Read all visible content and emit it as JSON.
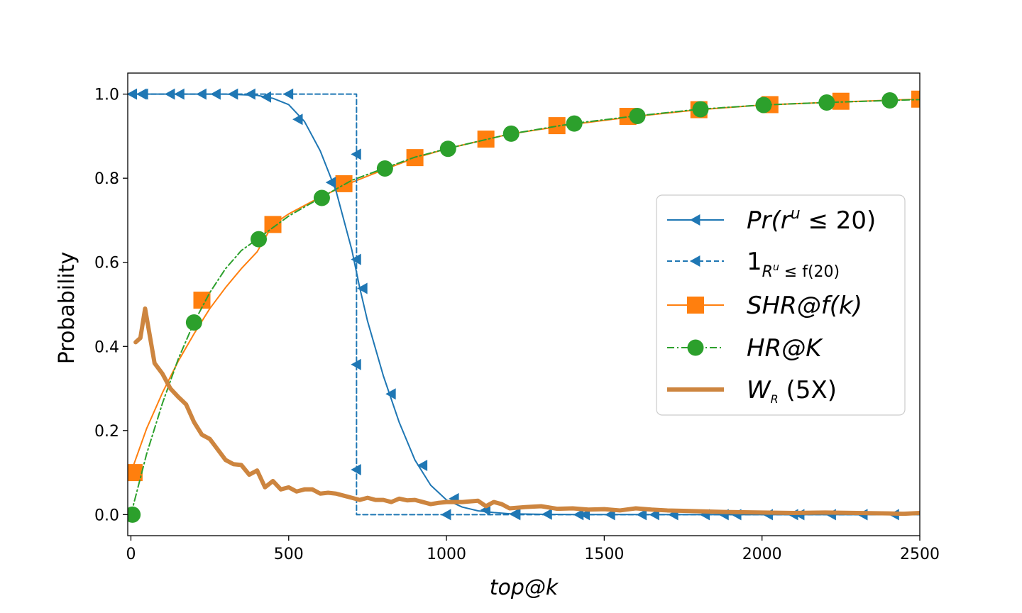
{
  "chart_data": {
    "type": "line",
    "title": "",
    "xlabel": "top@k",
    "ylabel": "Probability",
    "xlim": [
      -10,
      2500
    ],
    "ylim": [
      -0.05,
      1.05
    ],
    "xticks": [
      0,
      500,
      1000,
      1500,
      2000,
      2500
    ],
    "yticks": [
      0.0,
      0.2,
      0.4,
      0.6,
      0.8,
      1.0
    ],
    "xtick_labels": [
      "0",
      "500",
      "1000",
      "1500",
      "2000",
      "2500"
    ],
    "ytick_labels": [
      "0.0",
      "0.2",
      "0.4",
      "0.6",
      "0.8",
      "1.0"
    ],
    "grid": false,
    "legend_position": "center-right",
    "series": [
      {
        "name": "Pr(r^u ≤ 20)",
        "legend_main": "Pr(r",
        "legend_sup": "u",
        "legend_tail": " ≤ 20)",
        "color": "#1f77b4",
        "line_style": "solid",
        "marker": "triangle-left",
        "x": [
          0,
          100,
          200,
          300,
          400,
          450,
          500,
          550,
          600,
          650,
          700,
          725,
          750,
          800,
          850,
          900,
          950,
          1000,
          1050,
          1100,
          1150,
          1200,
          1300,
          1400,
          1500,
          2500
        ],
        "y": [
          1.0,
          1.0,
          1.0,
          1.0,
          0.997,
          0.99,
          0.975,
          0.935,
          0.865,
          0.77,
          0.63,
          0.54,
          0.46,
          0.33,
          0.22,
          0.13,
          0.07,
          0.035,
          0.018,
          0.009,
          0.005,
          0.002,
          0.0008,
          0.0003,
          0.0001,
          0.0
        ],
        "marker_points": [
          [
            5,
            1.0
          ],
          [
            35,
            1.0
          ],
          [
            125,
            1.0
          ],
          [
            225,
            1.0
          ],
          [
            325,
            1.0
          ],
          [
            430,
            0.993
          ],
          [
            530,
            0.94
          ],
          [
            635,
            0.79
          ],
          [
            735,
            0.538
          ],
          [
            825,
            0.287
          ],
          [
            925,
            0.117
          ],
          [
            1025,
            0.038
          ],
          [
            1125,
            0.011
          ],
          [
            1220,
            0.003
          ],
          [
            1320,
            0.001
          ],
          [
            1420,
            0.0
          ],
          [
            1520,
            0.0
          ],
          [
            1620,
            0.0
          ],
          [
            1720,
            0.0
          ],
          [
            1820,
            0.0
          ],
          [
            1920,
            0.0
          ],
          [
            2020,
            0.0
          ],
          [
            2120,
            0.0
          ],
          [
            2220,
            0.0
          ],
          [
            2320,
            0.0
          ],
          [
            2420,
            0.0
          ]
        ]
      },
      {
        "name": "1_{R^u ≤ f(20)}",
        "legend_main": "1",
        "legend_sub": "R",
        "legend_subsup": "u",
        "legend_subtail": " ≤ f(20)",
        "color": "#1f77b4",
        "line_style": "dashed",
        "marker": "triangle-left",
        "x": [
          -10,
          715,
          715,
          2500
        ],
        "y": [
          1.0,
          1.0,
          0.0,
          0.0
        ],
        "marker_points": [
          [
            40,
            1.0
          ],
          [
            155,
            1.0
          ],
          [
            270,
            1.0
          ],
          [
            380,
            1.0
          ],
          [
            500,
            1.0
          ],
          [
            715,
            0.857
          ],
          [
            715,
            0.607
          ],
          [
            715,
            0.357
          ],
          [
            715,
            0.107
          ],
          [
            1000,
            0.0
          ],
          [
            1220,
            0.0
          ],
          [
            1440,
            0.0
          ],
          [
            1660,
            0.0
          ],
          [
            1880,
            0.0
          ],
          [
            2100,
            0.0
          ],
          [
            2320,
            0.0
          ]
        ]
      },
      {
        "name": "SHR@f(k)",
        "legend_main": "SHR@f(k)",
        "color": "#ff7f0e",
        "line_style": "solid",
        "marker": "square",
        "x": [
          0,
          50,
          100,
          150,
          200,
          250,
          300,
          350,
          400,
          450,
          500,
          600,
          700,
          800,
          900,
          1000,
          1200,
          1400,
          1600,
          1800,
          2000,
          2200,
          2500
        ],
        "y": [
          0.1,
          0.205,
          0.29,
          0.365,
          0.43,
          0.49,
          0.54,
          0.585,
          0.625,
          0.69,
          0.715,
          0.755,
          0.79,
          0.82,
          0.848,
          0.87,
          0.905,
          0.928,
          0.947,
          0.963,
          0.974,
          0.98,
          0.988
        ],
        "marker_points": [
          [
            10,
            0.1
          ],
          [
            225,
            0.51
          ],
          [
            450,
            0.69
          ],
          [
            675,
            0.787
          ],
          [
            900,
            0.849
          ],
          [
            1125,
            0.893
          ],
          [
            1350,
            0.925
          ],
          [
            1575,
            0.947
          ],
          [
            1800,
            0.963
          ],
          [
            2025,
            0.975
          ],
          [
            2250,
            0.983
          ],
          [
            2500,
            0.988
          ]
        ]
      },
      {
        "name": "HR@K",
        "legend_main": "HR@K",
        "color": "#2ca02c",
        "line_style": "dashdot",
        "marker": "circle",
        "x": [
          0,
          50,
          100,
          150,
          200,
          250,
          300,
          350,
          400,
          500,
          600,
          700,
          800,
          900,
          1000,
          1200,
          1400,
          1600,
          1800,
          2000,
          2200,
          2500
        ],
        "y": [
          0.0,
          0.145,
          0.265,
          0.37,
          0.457,
          0.528,
          0.585,
          0.628,
          0.655,
          0.71,
          0.753,
          0.795,
          0.823,
          0.85,
          0.87,
          0.905,
          0.93,
          0.948,
          0.964,
          0.974,
          0.98,
          0.987
        ],
        "marker_points": [
          [
            5,
            0.0
          ],
          [
            200,
            0.457
          ],
          [
            405,
            0.655
          ],
          [
            605,
            0.753
          ],
          [
            805,
            0.823
          ],
          [
            1005,
            0.87
          ],
          [
            1205,
            0.906
          ],
          [
            1405,
            0.93
          ],
          [
            1605,
            0.948
          ],
          [
            1805,
            0.964
          ],
          [
            2005,
            0.974
          ],
          [
            2205,
            0.98
          ],
          [
            2405,
            0.985
          ]
        ]
      },
      {
        "name": "W_R (5X)",
        "legend_main": "W",
        "legend_sub": "R",
        "legend_tail": " (5X)",
        "color": "#cd853f",
        "line_style": "thick-solid",
        "marker": "none",
        "x": [
          15,
          30,
          45,
          75,
          100,
          125,
          150,
          175,
          200,
          225,
          250,
          275,
          300,
          325,
          350,
          375,
          400,
          425,
          450,
          475,
          500,
          525,
          550,
          575,
          600,
          625,
          650,
          675,
          700,
          725,
          750,
          775,
          800,
          825,
          850,
          875,
          900,
          925,
          950,
          975,
          1000,
          1050,
          1100,
          1125,
          1150,
          1175,
          1200,
          1250,
          1300,
          1350,
          1400,
          1450,
          1500,
          1550,
          1600,
          1650,
          1700,
          1750,
          1800,
          1900,
          2000,
          2100,
          2200,
          2300,
          2400,
          2450,
          2500
        ],
        "y": [
          0.41,
          0.42,
          0.49,
          0.36,
          0.335,
          0.3,
          0.28,
          0.262,
          0.22,
          0.19,
          0.18,
          0.155,
          0.13,
          0.12,
          0.118,
          0.095,
          0.105,
          0.065,
          0.08,
          0.06,
          0.065,
          0.055,
          0.06,
          0.06,
          0.05,
          0.052,
          0.05,
          0.045,
          0.04,
          0.035,
          0.04,
          0.035,
          0.035,
          0.03,
          0.038,
          0.034,
          0.035,
          0.03,
          0.025,
          0.028,
          0.03,
          0.03,
          0.033,
          0.02,
          0.03,
          0.025,
          0.015,
          0.018,
          0.02,
          0.014,
          0.015,
          0.012,
          0.013,
          0.01,
          0.015,
          0.012,
          0.01,
          0.009,
          0.008,
          0.006,
          0.005,
          0.004,
          0.005,
          0.004,
          0.003,
          0.002,
          0.004
        ]
      }
    ]
  }
}
